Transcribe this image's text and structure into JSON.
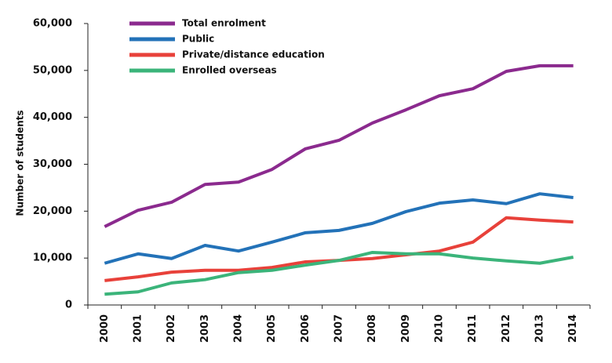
{
  "chart_data": {
    "type": "line",
    "y_label": "Number of students",
    "categories": [
      "2000",
      "2001",
      "2002",
      "2003",
      "2004",
      "2005",
      "2006",
      "2007",
      "2008",
      "2009",
      "2010",
      "2011",
      "2012",
      "2013",
      "2014"
    ],
    "series": [
      {
        "name": "Total enrolment",
        "color": "#8b2a8e",
        "values": [
          16700,
          20200,
          21900,
          25700,
          26200,
          28900,
          33300,
          35100,
          38800,
          41600,
          44600,
          46100,
          49800,
          51000,
          51000
        ]
      },
      {
        "name": "Public",
        "color": "#2372b8",
        "values": [
          8900,
          10900,
          9900,
          12700,
          11500,
          13400,
          15400,
          15900,
          17400,
          19900,
          21700,
          22400,
          21600,
          23700,
          22900
        ]
      },
      {
        "name": "Private/distance education",
        "color": "#e8413a",
        "values": [
          5200,
          6000,
          7000,
          7400,
          7400,
          8000,
          9200,
          9500,
          9900,
          10700,
          11500,
          13400,
          18600,
          18100,
          17700
        ]
      },
      {
        "name": "Enrolled overseas",
        "color": "#3bb47a",
        "values": [
          2300,
          2800,
          4700,
          5400,
          6900,
          7400,
          8500,
          9500,
          11200,
          10900,
          10900,
          10000,
          9400,
          8900,
          10200
        ]
      }
    ],
    "ylim": [
      0,
      60000
    ],
    "yticks": [
      0,
      {
        "value": 10000,
        "label": "10,000"
      },
      {
        "value": 20000,
        "label": "20,000"
      },
      {
        "value": 30000,
        "label": "30,000"
      },
      {
        "value": 40000,
        "label": "40,000"
      },
      {
        "value": 50000,
        "label": "50,000"
      },
      {
        "value": 60000,
        "label": "60,000"
      }
    ],
    "legend": "top-left"
  }
}
